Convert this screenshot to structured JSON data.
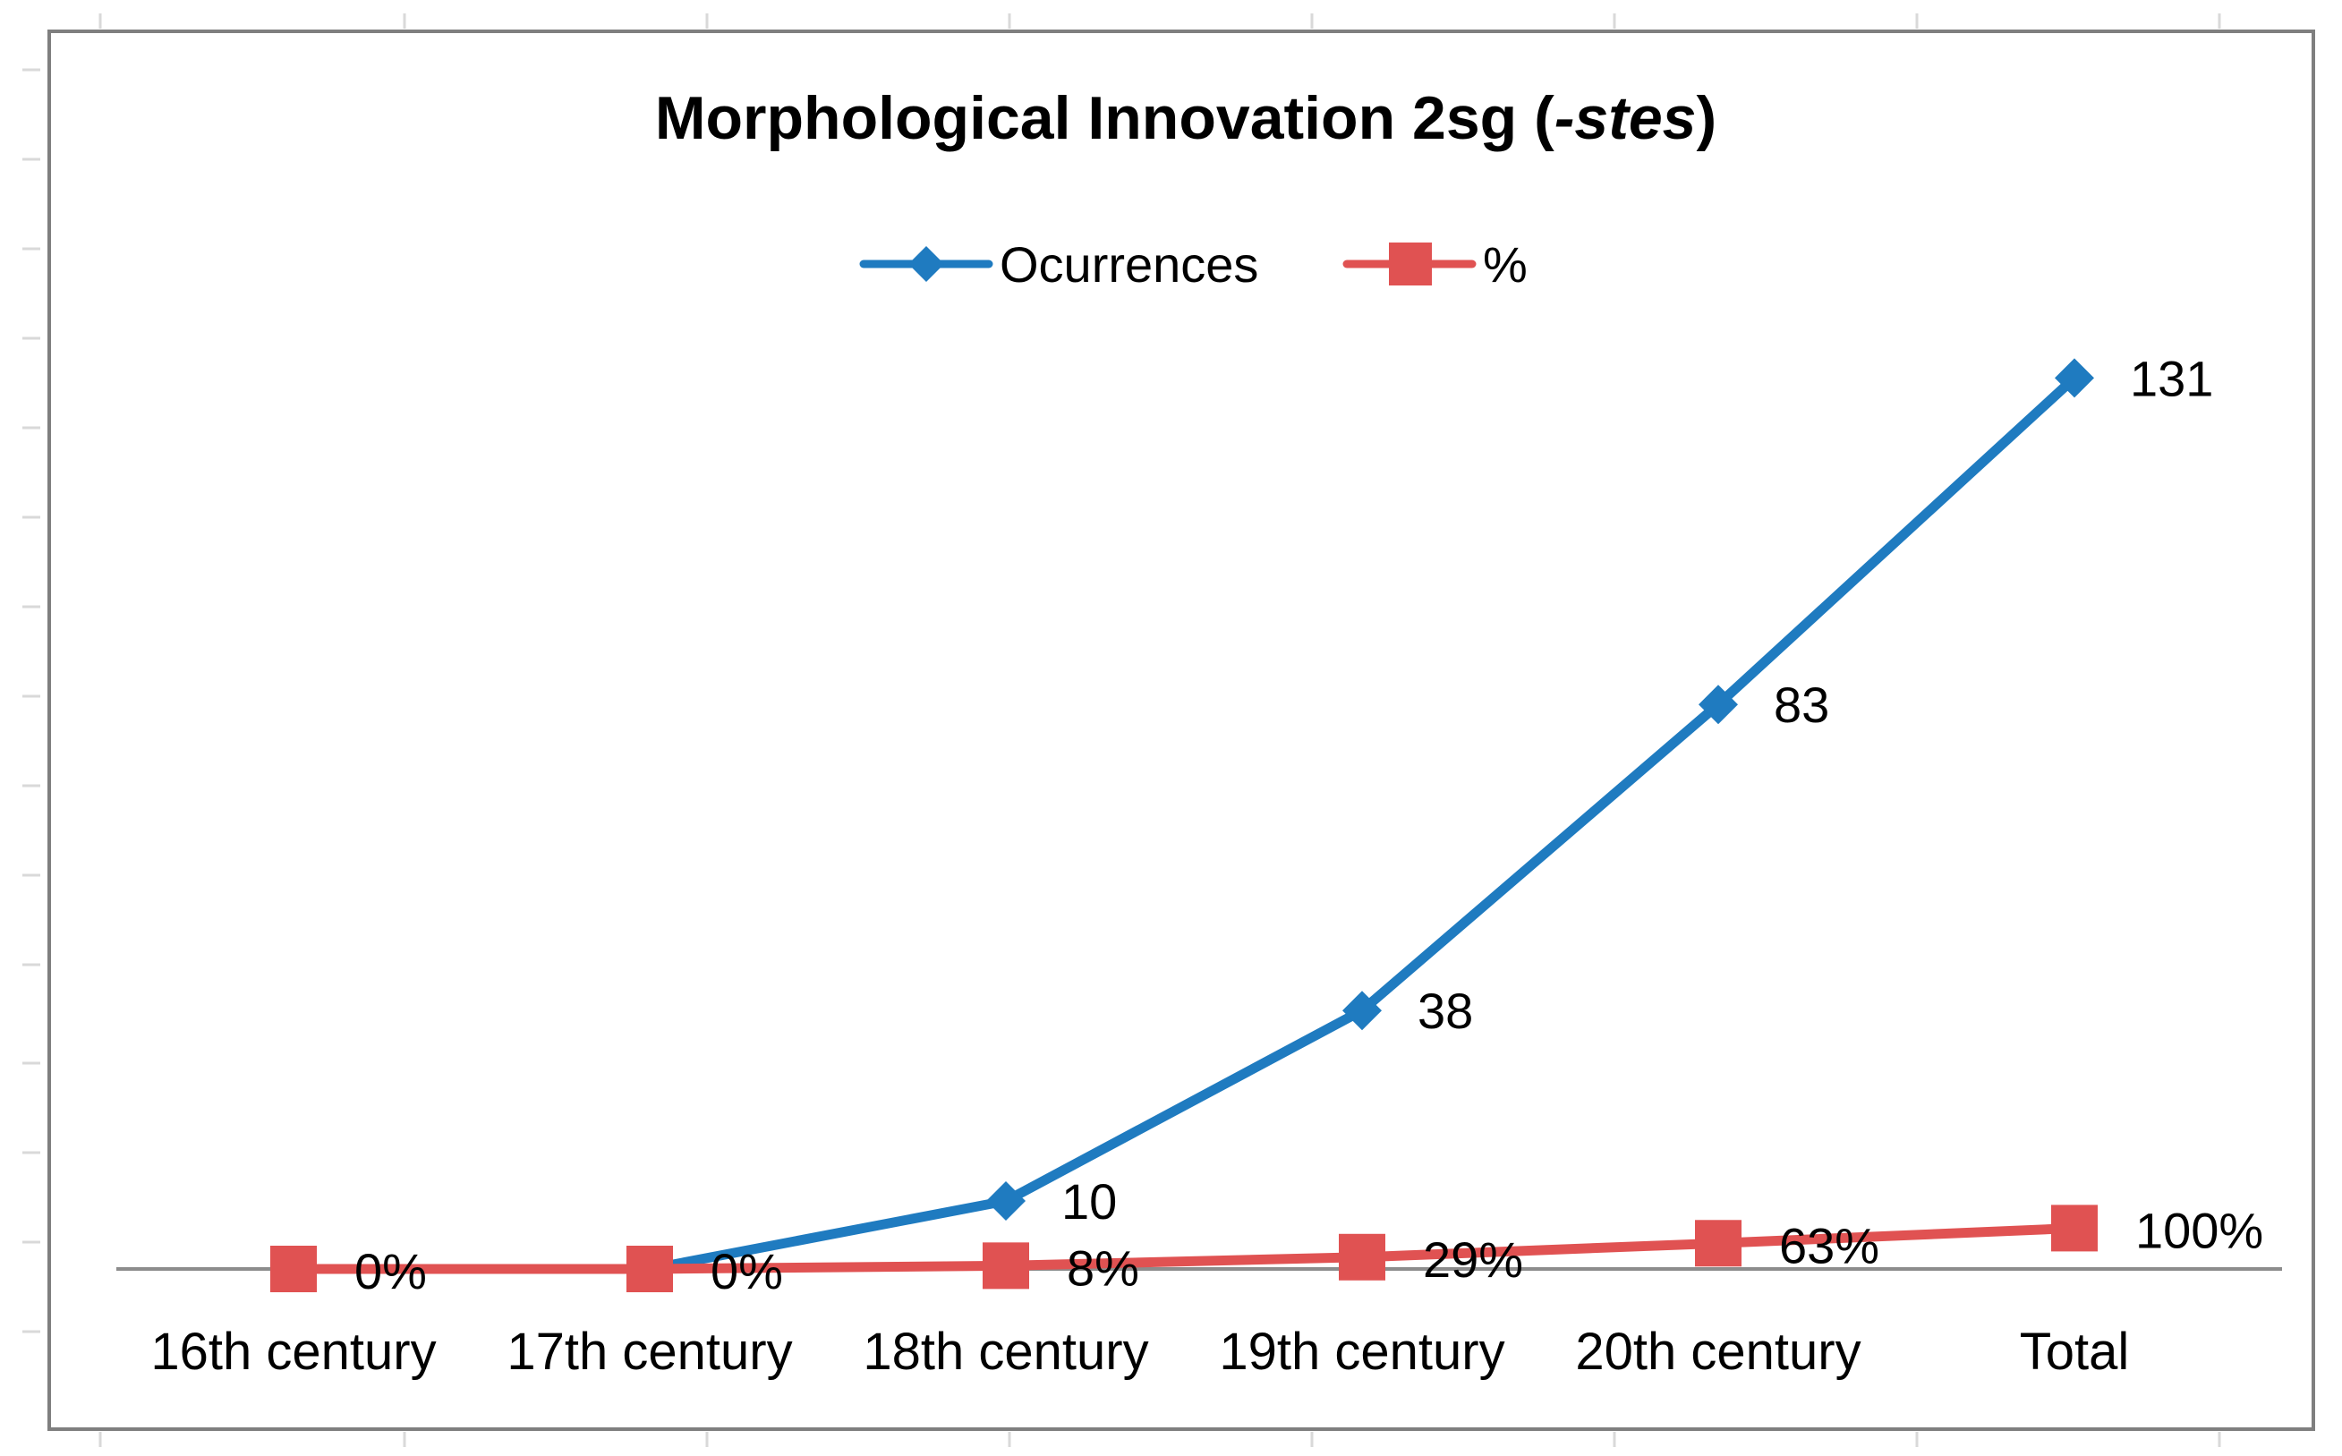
{
  "chart_data": {
    "type": "line",
    "title": "Morphological Innovation 2sg (",
    "title_italic": "-stes",
    "title_suffix": ")",
    "categories": [
      "16th century",
      "17th century",
      "18th century",
      "19th century",
      "20th century",
      "Total"
    ],
    "series": [
      {
        "name": "Ocurrences",
        "values": [
          0,
          0,
          10,
          38,
          83,
          131
        ],
        "labels": [
          "",
          "",
          "10",
          "38",
          "83",
          "131"
        ],
        "color": "#1f7bc0",
        "marker": "diamond"
      },
      {
        "name": "%",
        "values": [
          0,
          0,
          0.08,
          0.29,
          0.63,
          1.0
        ],
        "labels": [
          "0%",
          "0%",
          "8%",
          "29%",
          "63%",
          "100%"
        ],
        "color": "#e05252",
        "marker": "square"
      }
    ],
    "ylim": [
      0,
      160
    ],
    "xlabel": "",
    "ylabel": "",
    "grid": false,
    "legend_position": "top"
  },
  "colors": {
    "frame": "#7f7f7f",
    "axis": "#8c8c8c",
    "outer_ticks": "#d9d9d9"
  }
}
